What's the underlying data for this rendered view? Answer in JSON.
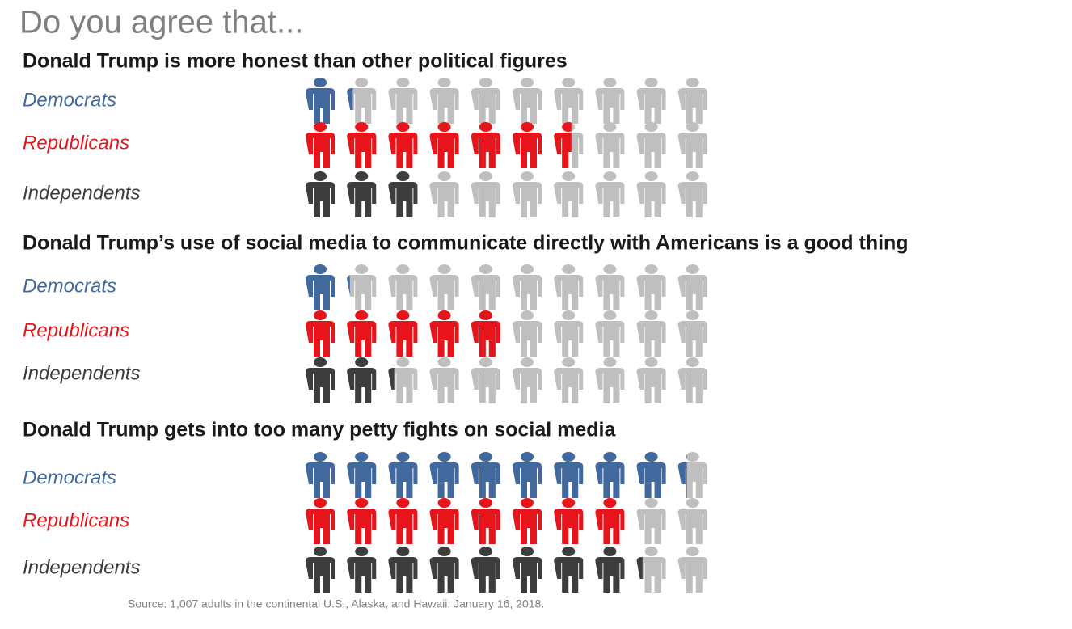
{
  "title": "Do you agree that...",
  "source": "Source: 1,007 adults in the continental U.S., Alaska, and Hawaii. January 16, 2018.",
  "chart_data": [
    {
      "type": "pictograph",
      "title": "Donald Trump is more honest than other political figures",
      "categories": [
        "Democrats",
        "Republicans",
        "Independents"
      ],
      "values": [
        12,
        66,
        30
      ],
      "colors": [
        "#41699e",
        "#e8141b",
        "#3d3d3d"
      ],
      "empty_color": "#bfbfbf",
      "xlim": [
        0,
        100
      ]
    },
    {
      "type": "pictograph",
      "title": "Donald Trump’s use of social media to communicate directly with Americans is a good thing",
      "categories": [
        "Democrats",
        "Republicans",
        "Independents"
      ],
      "values": [
        11,
        50,
        22
      ],
      "colors": [
        "#41699e",
        "#e8141b",
        "#3d3d3d"
      ],
      "empty_color": "#bfbfbf",
      "xlim": [
        0,
        100
      ]
    },
    {
      "type": "pictograph",
      "title": "Donald Trump gets into too many petty fights on social media",
      "categories": [
        "Democrats",
        "Republicans",
        "Independents"
      ],
      "values": [
        93,
        80,
        82
      ],
      "colors": [
        "#41699e",
        "#e8141b",
        "#3d3d3d"
      ],
      "empty_color": "#bfbfbf",
      "xlim": [
        0,
        100
      ]
    }
  ]
}
